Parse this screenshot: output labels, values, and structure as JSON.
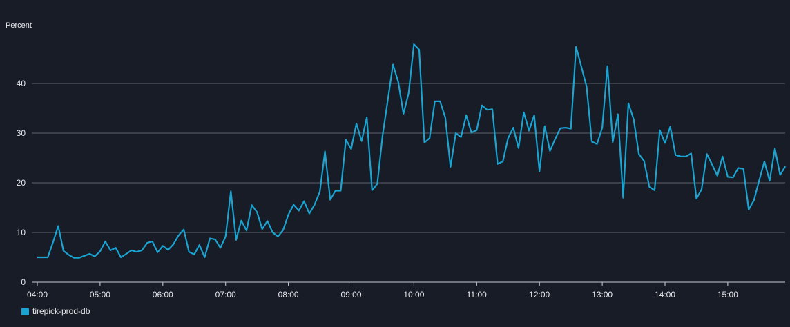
{
  "chart_data": {
    "type": "line",
    "ylabel": "Percent",
    "ylim": [
      0,
      50
    ],
    "yticks": [
      0,
      10,
      20,
      30,
      40
    ],
    "xticks": [
      "04:00",
      "05:00",
      "06:00",
      "07:00",
      "08:00",
      "09:00",
      "10:00",
      "11:00",
      "12:00",
      "13:00",
      "14:00",
      "15:00"
    ],
    "x_start": "04:00",
    "x_step_minutes": 5,
    "grid": true,
    "legend_position": "bottom-left",
    "colors": {
      "series": "#1ba3d1",
      "grid": "#5b606b",
      "axis": "#c8ccd2",
      "background": "#171c26",
      "text": "#e6e8eb"
    },
    "series": [
      {
        "name": "tirepick-prod-db",
        "values": [
          5.0,
          5.0,
          5.0,
          8.0,
          11.3,
          6.3,
          5.5,
          4.9,
          4.9,
          5.3,
          5.7,
          5.2,
          6.2,
          8.2,
          6.4,
          6.9,
          5.0,
          5.7,
          6.4,
          6.1,
          6.4,
          7.9,
          8.2,
          6.0,
          7.3,
          6.5,
          7.6,
          9.4,
          10.6,
          6.1,
          5.6,
          7.5,
          5.0,
          8.8,
          8.6,
          6.9,
          9.2,
          18.3,
          8.5,
          12.4,
          10.4,
          15.5,
          14.1,
          10.7,
          12.3,
          10.0,
          9.2,
          10.5,
          13.6,
          15.6,
          14.4,
          16.3,
          13.8,
          15.6,
          18.2,
          26.3,
          16.6,
          18.4,
          18.4,
          28.7,
          26.8,
          31.9,
          28.4,
          33.2,
          18.5,
          19.8,
          29.5,
          36.6,
          43.8,
          40.3,
          33.9,
          38.1,
          47.9,
          46.8,
          28.1,
          29.0,
          36.4,
          36.4,
          33.1,
          23.2,
          30.0,
          29.2,
          33.6,
          30.1,
          30.6,
          35.6,
          34.7,
          34.8,
          23.8,
          24.3,
          29.0,
          31.1,
          27.0,
          34.2,
          30.5,
          33.6,
          22.3,
          31.4,
          26.4,
          28.8,
          31.0,
          31.1,
          30.9,
          47.4,
          43.4,
          39.4,
          28.3,
          27.8,
          31.1,
          43.5,
          28.2,
          33.8,
          17.0,
          36.0,
          32.8,
          25.8,
          24.4,
          19.2,
          18.5,
          30.6,
          28.0,
          31.3,
          25.6,
          25.3,
          25.3,
          25.9,
          16.8,
          18.7,
          25.8,
          23.7,
          21.4,
          25.3,
          21.2,
          21.1,
          23.0,
          22.8,
          14.6,
          16.5,
          20.5,
          24.3,
          20.4,
          26.9,
          21.6,
          23.3
        ]
      }
    ]
  }
}
